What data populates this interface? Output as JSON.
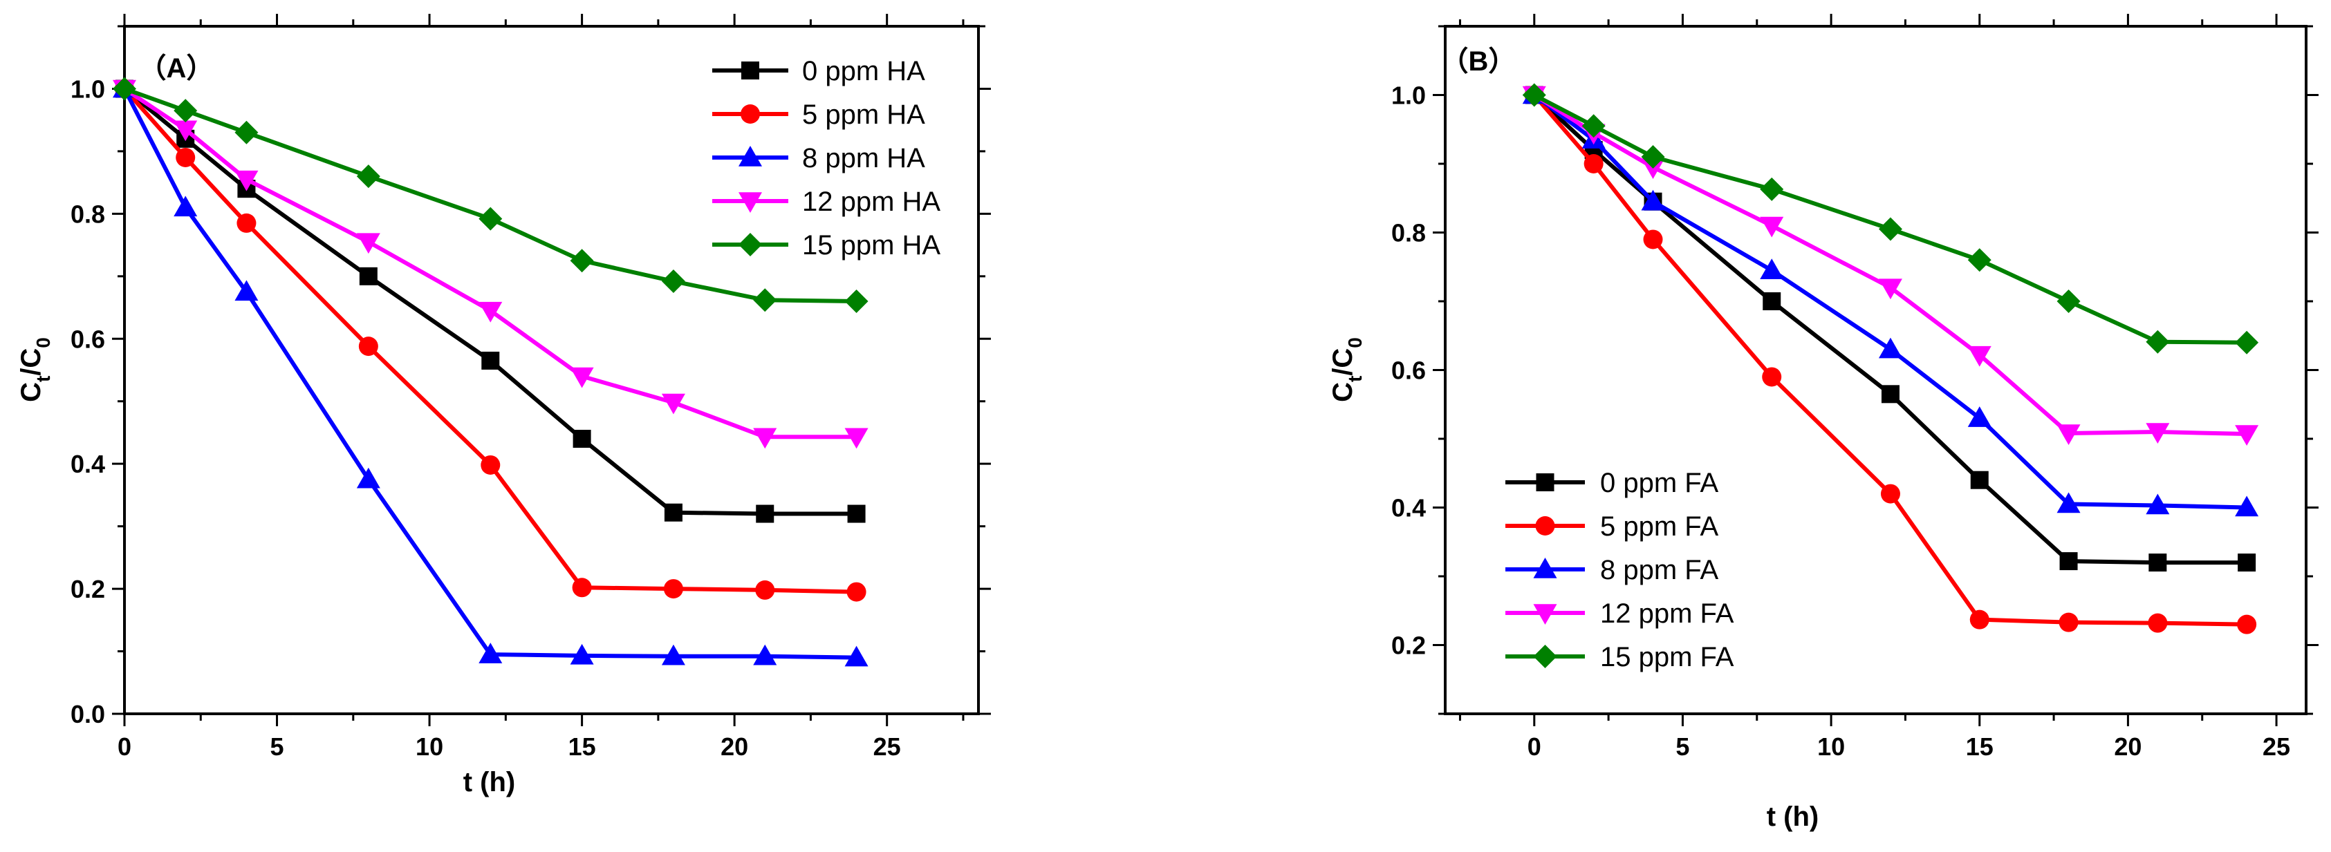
{
  "chart_data": [
    {
      "type": "line",
      "panel_label": "（A）",
      "xlabel": "t (h)",
      "ylabel": "C",
      "ylabel_sub_t": "t",
      "ylabel_slash": "/C",
      "ylabel_sub_0": "0",
      "xlim": [
        0,
        28
      ],
      "ylim": [
        0,
        1.1
      ],
      "xticks": [
        0,
        5,
        10,
        15,
        20,
        25
      ],
      "xtick_labels": [
        "0",
        "5",
        "10",
        "15",
        "20",
        "25"
      ],
      "yticks": [
        0.0,
        0.2,
        0.4,
        0.6,
        0.8,
        1.0
      ],
      "ytick_labels": [
        "0.0",
        "0.2",
        "0.4",
        "0.6",
        "0.8",
        "1.0"
      ],
      "legend_position": "top-right",
      "x": [
        0,
        2,
        4,
        8,
        12,
        15,
        18,
        21,
        24
      ],
      "series": [
        {
          "name": "0 ppm HA",
          "color": "#000000",
          "marker": "square",
          "values": [
            1.0,
            0.92,
            0.84,
            0.7,
            0.565,
            0.44,
            0.322,
            0.32,
            0.32
          ]
        },
        {
          "name": "5 ppm HA",
          "color": "#ff0000",
          "marker": "circle",
          "values": [
            1.0,
            0.89,
            0.785,
            0.588,
            0.398,
            0.202,
            0.2,
            0.198,
            0.195
          ]
        },
        {
          "name": "8 ppm HA",
          "color": "#0000ff",
          "marker": "triangle-up",
          "values": [
            1.0,
            0.81,
            0.675,
            0.375,
            0.095,
            0.093,
            0.092,
            0.092,
            0.09
          ]
        },
        {
          "name": "12 ppm HA",
          "color": "#ff00ff",
          "marker": "triangle-down",
          "values": [
            1.0,
            0.935,
            0.855,
            0.755,
            0.645,
            0.54,
            0.498,
            0.443,
            0.443
          ]
        },
        {
          "name": "15 ppm HA",
          "color": "#008000",
          "marker": "diamond",
          "values": [
            1.0,
            0.965,
            0.93,
            0.86,
            0.792,
            0.725,
            0.692,
            0.662,
            0.66
          ]
        }
      ]
    },
    {
      "type": "line",
      "panel_label": "（B）",
      "xlabel": "t (h)",
      "ylabel": "C",
      "ylabel_sub_t": "t",
      "ylabel_slash": "/C",
      "ylabel_sub_0": "0",
      "xlim": [
        -3,
        26
      ],
      "ylim": [
        0.1,
        1.1
      ],
      "xticks": [
        0,
        5,
        10,
        15,
        20,
        25
      ],
      "xtick_labels": [
        "0",
        "5",
        "10",
        "15",
        "20",
        "25"
      ],
      "yticks": [
        0.2,
        0.4,
        0.6,
        0.8,
        1.0
      ],
      "ytick_labels": [
        "0.2",
        "0.4",
        "0.6",
        "0.8",
        "1.0"
      ],
      "legend_position": "bottom-left",
      "x": [
        0,
        2,
        4,
        8,
        12,
        15,
        18,
        21,
        24
      ],
      "series": [
        {
          "name": "0 ppm FA",
          "color": "#000000",
          "marker": "square",
          "values": [
            1.0,
            0.92,
            0.845,
            0.7,
            0.565,
            0.44,
            0.322,
            0.32,
            0.32
          ]
        },
        {
          "name": "5 ppm FA",
          "color": "#ff0000",
          "marker": "circle",
          "values": [
            1.0,
            0.9,
            0.79,
            0.59,
            0.42,
            0.237,
            0.233,
            0.232,
            0.23
          ]
        },
        {
          "name": "8 ppm FA",
          "color": "#0000ff",
          "marker": "triangle-up",
          "values": [
            1.0,
            0.935,
            0.845,
            0.745,
            0.63,
            0.53,
            0.405,
            0.403,
            0.4
          ]
        },
        {
          "name": "12 ppm FA",
          "color": "#ff00ff",
          "marker": "triangle-down",
          "values": [
            1.0,
            0.945,
            0.895,
            0.81,
            0.72,
            0.622,
            0.508,
            0.51,
            0.507
          ]
        },
        {
          "name": "15 ppm FA",
          "color": "#008000",
          "marker": "diamond",
          "values": [
            1.0,
            0.955,
            0.91,
            0.863,
            0.805,
            0.76,
            0.7,
            0.641,
            0.64
          ]
        }
      ]
    }
  ]
}
